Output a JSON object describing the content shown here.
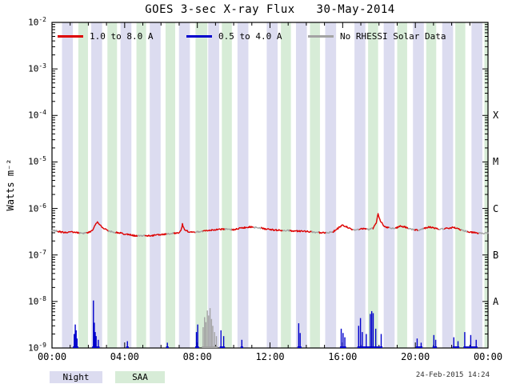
{
  "title": "GOES 3-sec X-ray Flux   30-May-2014",
  "y_axis_label": "Watts m⁻²",
  "colors": {
    "red": "#dd0000",
    "blue": "#0000cc",
    "gray": "#a3a3a3",
    "night": "#dcdcf0",
    "saa": "#d7ecd7",
    "frame": "#000000",
    "timestamp": "#303030"
  },
  "legend": {
    "items": [
      {
        "label": "1.0 to 8.0 A"
      },
      {
        "label": "0.5 to 4.0 A"
      },
      {
        "label": "No RHESSI Solar Data"
      }
    ]
  },
  "footer": {
    "night_label": "Night",
    "saa_label": "SAA",
    "timestamp": "24-Feb-2015 14:24"
  },
  "chart_data": {
    "type": "line",
    "title": "GOES 3-sec X-ray Flux",
    "date": "30-May-2014",
    "ylabel": "Watts m^-2",
    "y_scale": "log",
    "ylim": [
      1e-09,
      0.01
    ],
    "xlim_hours": [
      0,
      24
    ],
    "ylog_exponents": [
      -2,
      -3,
      -4,
      -5,
      -6,
      -7,
      -8,
      -9
    ],
    "x_tick_labels": [
      "00:00",
      "04:00",
      "08:00",
      "12:00",
      "16:00",
      "20:00",
      "00:00"
    ],
    "x_tick_hours": [
      0,
      4,
      8,
      12,
      16,
      20,
      24
    ],
    "flare_classes": [
      {
        "label": "X",
        "flux": 0.0001
      },
      {
        "label": "M",
        "flux": 1e-05
      },
      {
        "label": "C",
        "flux": 1e-06
      },
      {
        "label": "B",
        "flux": 1e-07
      },
      {
        "label": "A",
        "flux": 1e-08
      }
    ],
    "night_bands": [
      [
        0.55,
        1.15
      ],
      [
        2.16,
        2.76
      ],
      [
        3.77,
        4.37
      ],
      [
        5.38,
        5.98
      ],
      [
        6.99,
        7.59
      ],
      [
        8.6,
        9.2
      ],
      [
        10.21,
        10.81
      ],
      [
        11.82,
        12.42
      ],
      [
        13.43,
        14.03
      ],
      [
        15.04,
        15.64
      ],
      [
        16.65,
        17.25
      ],
      [
        18.26,
        18.86
      ],
      [
        19.87,
        20.47
      ],
      [
        21.48,
        22.08
      ],
      [
        23.09,
        23.69
      ]
    ],
    "saa_bands": [
      [
        1.45,
        1.98
      ],
      [
        3.05,
        3.58
      ],
      [
        4.65,
        5.18
      ],
      [
        6.25,
        6.78
      ],
      [
        7.9,
        8.55
      ],
      [
        9.35,
        9.9
      ],
      [
        12.6,
        13.15
      ],
      [
        14.2,
        14.75
      ],
      [
        17.4,
        17.95
      ],
      [
        19.0,
        19.55
      ],
      [
        20.6,
        21.15
      ],
      [
        22.2,
        22.75
      ],
      [
        23.8,
        24.0
      ]
    ],
    "no_data_intervals": [
      [
        0.0,
        0.3
      ],
      [
        1.5,
        1.9
      ],
      [
        3.1,
        3.5
      ],
      [
        4.7,
        5.1
      ],
      [
        6.3,
        6.7
      ],
      [
        7.9,
        8.3
      ],
      [
        9.5,
        9.9
      ],
      [
        11.1,
        11.5
      ],
      [
        12.7,
        13.1
      ],
      [
        14.3,
        14.7
      ],
      [
        15.05,
        15.45
      ],
      [
        16.55,
        16.9
      ],
      [
        17.3,
        17.65
      ],
      [
        18.55,
        18.9
      ],
      [
        19.6,
        19.95
      ],
      [
        20.15,
        20.45
      ],
      [
        21.3,
        21.6
      ],
      [
        22.5,
        22.85
      ],
      [
        23.5,
        24.0
      ]
    ],
    "series": [
      {
        "name": "1.0 to 8.0 A",
        "type": "line",
        "points": [
          [
            0.0,
            3.4e-07
          ],
          [
            0.25,
            3.3e-07
          ],
          [
            0.5,
            3.1e-07
          ],
          [
            0.8,
            3e-07
          ],
          [
            1.1,
            3.1e-07
          ],
          [
            1.4,
            3e-07
          ],
          [
            1.7,
            2.9e-07
          ],
          [
            2.0,
            3e-07
          ],
          [
            2.2,
            3.3e-07
          ],
          [
            2.35,
            4.2e-07
          ],
          [
            2.5,
            5e-07
          ],
          [
            2.65,
            4.4e-07
          ],
          [
            2.85,
            3.7e-07
          ],
          [
            3.1,
            3.3e-07
          ],
          [
            3.4,
            3.1e-07
          ],
          [
            3.7,
            3e-07
          ],
          [
            4.0,
            2.8e-07
          ],
          [
            4.3,
            2.7e-07
          ],
          [
            4.6,
            2.6e-07
          ],
          [
            5.0,
            2.6e-07
          ],
          [
            5.4,
            2.6e-07
          ],
          [
            5.8,
            2.7e-07
          ],
          [
            6.2,
            2.8e-07
          ],
          [
            6.6,
            2.9e-07
          ],
          [
            6.95,
            3e-07
          ],
          [
            7.1,
            3.3e-07
          ],
          [
            7.18,
            4.6e-07
          ],
          [
            7.3,
            3.4e-07
          ],
          [
            7.6,
            3.1e-07
          ],
          [
            7.9,
            3.1e-07
          ],
          [
            8.2,
            3.2e-07
          ],
          [
            8.5,
            3.3e-07
          ],
          [
            8.8,
            3.4e-07
          ],
          [
            9.1,
            3.5e-07
          ],
          [
            9.4,
            3.6e-07
          ],
          [
            9.7,
            3.6e-07
          ],
          [
            10.0,
            3.5e-07
          ],
          [
            10.3,
            3.7e-07
          ],
          [
            10.6,
            3.9e-07
          ],
          [
            10.9,
            4e-07
          ],
          [
            11.2,
            3.9e-07
          ],
          [
            11.5,
            3.8e-07
          ],
          [
            11.8,
            3.6e-07
          ],
          [
            12.1,
            3.5e-07
          ],
          [
            12.4,
            3.4e-07
          ],
          [
            12.8,
            3.4e-07
          ],
          [
            13.2,
            3.3e-07
          ],
          [
            13.6,
            3.25e-07
          ],
          [
            14.0,
            3.2e-07
          ],
          [
            14.4,
            3.1e-07
          ],
          [
            14.8,
            3e-07
          ],
          [
            15.2,
            3e-07
          ],
          [
            15.5,
            3.2e-07
          ],
          [
            15.8,
            3.9e-07
          ],
          [
            16.0,
            4.4e-07
          ],
          [
            16.2,
            4.1e-07
          ],
          [
            16.45,
            3.6e-07
          ],
          [
            16.7,
            3.4e-07
          ],
          [
            16.95,
            3.6e-07
          ],
          [
            17.2,
            3.7e-07
          ],
          [
            17.45,
            3.5e-07
          ],
          [
            17.7,
            3.8e-07
          ],
          [
            17.85,
            5e-07
          ],
          [
            17.95,
            7.6e-07
          ],
          [
            18.08,
            5.4e-07
          ],
          [
            18.25,
            4.3e-07
          ],
          [
            18.45,
            3.9e-07
          ],
          [
            18.7,
            3.7e-07
          ],
          [
            18.95,
            3.8e-07
          ],
          [
            19.2,
            4.2e-07
          ],
          [
            19.4,
            4e-07
          ],
          [
            19.65,
            3.7e-07
          ],
          [
            19.9,
            3.5e-07
          ],
          [
            20.15,
            3.4e-07
          ],
          [
            20.45,
            3.7e-07
          ],
          [
            20.75,
            4e-07
          ],
          [
            21.0,
            3.8e-07
          ],
          [
            21.25,
            3.6e-07
          ],
          [
            21.55,
            3.6e-07
          ],
          [
            21.85,
            3.8e-07
          ],
          [
            22.1,
            3.9e-07
          ],
          [
            22.4,
            3.6e-07
          ],
          [
            22.7,
            3.3e-07
          ],
          [
            23.0,
            3.1e-07
          ],
          [
            23.3,
            3e-07
          ],
          [
            23.6,
            2.9e-07
          ],
          [
            23.8,
            2.9e-07
          ],
          [
            24.0,
            3e-07
          ]
        ]
      },
      {
        "name": "0.5 to 4.0 A",
        "type": "spikes",
        "points": [
          [
            1.22,
            2e-09
          ],
          [
            1.28,
            3.2e-09
          ],
          [
            1.33,
            2.4e-09
          ],
          [
            1.38,
            1.6e-09
          ],
          [
            2.28,
            1.05e-08
          ],
          [
            2.33,
            3.5e-09
          ],
          [
            2.38,
            2.2e-09
          ],
          [
            2.43,
            1.8e-09
          ],
          [
            2.55,
            1.5e-09
          ],
          [
            4.15,
            1.4e-09
          ],
          [
            6.35,
            1.3e-09
          ],
          [
            7.95,
            2.2e-09
          ],
          [
            8.02,
            3.2e-09
          ],
          [
            9.3,
            2.4e-09
          ],
          [
            9.45,
            1.8e-09
          ],
          [
            10.45,
            1.5e-09
          ],
          [
            13.58,
            3.4e-09
          ],
          [
            13.66,
            2.1e-09
          ],
          [
            15.92,
            2.6e-09
          ],
          [
            16.02,
            2.1e-09
          ],
          [
            16.12,
            1.7e-09
          ],
          [
            16.88,
            3e-09
          ],
          [
            16.98,
            4.4e-09
          ],
          [
            17.08,
            2.2e-09
          ],
          [
            17.3,
            2e-09
          ],
          [
            17.52,
            5.4e-09
          ],
          [
            17.6,
            6.2e-09
          ],
          [
            17.68,
            5.6e-09
          ],
          [
            17.82,
            2.6e-09
          ],
          [
            18.12,
            2e-09
          ],
          [
            20.1,
            1.6e-09
          ],
          [
            20.32,
            1.3e-09
          ],
          [
            21.02,
            1.9e-09
          ],
          [
            21.12,
            1.5e-09
          ],
          [
            22.12,
            1.7e-09
          ],
          [
            22.35,
            1.4e-09
          ],
          [
            22.72,
            2.2e-09
          ],
          [
            23.05,
            1.9e-09
          ],
          [
            23.35,
            1.5e-09
          ]
        ]
      },
      {
        "name": "No RHESSI Solar Data",
        "type": "spikes",
        "points": [
          [
            8.32,
            2.8e-09
          ],
          [
            8.4,
            4.6e-09
          ],
          [
            8.47,
            3.6e-09
          ],
          [
            8.55,
            6.4e-09
          ],
          [
            8.62,
            5e-09
          ],
          [
            8.7,
            7.2e-09
          ],
          [
            8.78,
            4.2e-09
          ],
          [
            8.85,
            3e-09
          ],
          [
            8.95,
            2.2e-09
          ],
          [
            9.05,
            1.8e-09
          ]
        ]
      }
    ]
  }
}
